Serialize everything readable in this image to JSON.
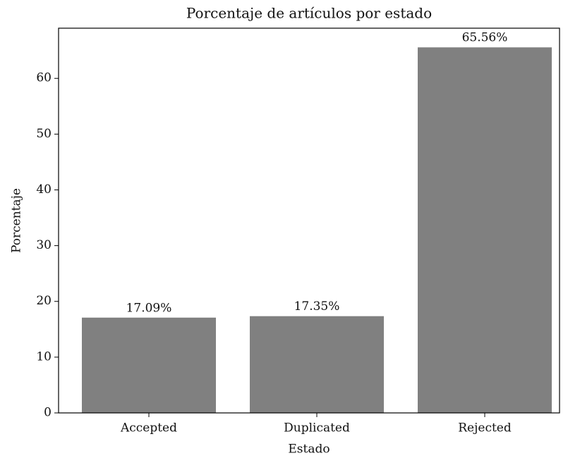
{
  "chart_data": {
    "type": "bar",
    "title": "Porcentaje de artículos por estado",
    "x_label": "Estado",
    "y_label": "Porcentaje",
    "categories": [
      "Accepted",
      "Duplicated",
      "Rejected"
    ],
    "values": [
      17.09,
      17.35,
      65.56
    ],
    "value_labels": [
      "17.09%",
      "17.35%",
      "65.56%"
    ],
    "color": "#808080",
    "ylim": [
      0,
      69
    ],
    "yticks": [
      0,
      10,
      20,
      30,
      40,
      50,
      60
    ],
    "grid": false
  }
}
